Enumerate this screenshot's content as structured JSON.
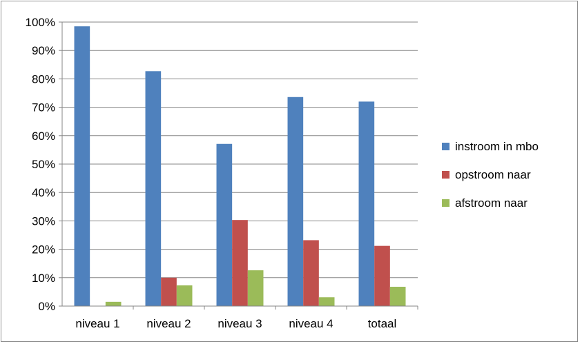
{
  "chart_data": {
    "type": "bar",
    "categories": [
      "niveau 1",
      "niveau 2",
      "niveau 3",
      "niveau 4",
      "totaal"
    ],
    "series": [
      {
        "name": "instroom in mbo",
        "color": "#4F81BD",
        "values": [
          98.5,
          82.7,
          57.1,
          73.6,
          72.0
        ]
      },
      {
        "name": "opstroom naar",
        "color": "#C0504D",
        "values": [
          0.0,
          10.0,
          30.3,
          23.2,
          21.2
        ]
      },
      {
        "name": "afstroom naar",
        "color": "#9BBB59",
        "values": [
          1.5,
          7.3,
          12.6,
          3.1,
          6.8
        ]
      }
    ],
    "ylim": [
      0,
      100
    ],
    "yticks": [
      "0%",
      "10%",
      "20%",
      "30%",
      "40%",
      "50%",
      "60%",
      "70%",
      "80%",
      "90%",
      "100%"
    ],
    "grid": true,
    "legend_position": "right",
    "title": "",
    "xlabel": "",
    "ylabel": ""
  }
}
